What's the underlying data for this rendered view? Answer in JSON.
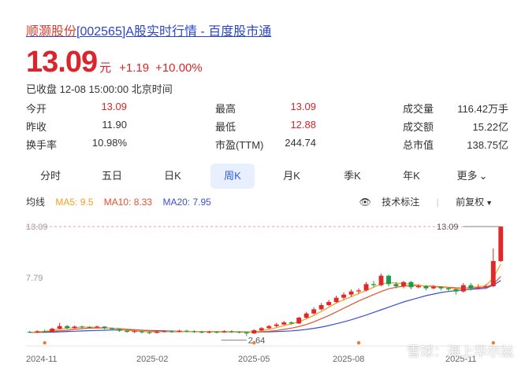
{
  "header": {
    "brand": "顺灏股份",
    "title_rest": "[002565]A股实时行情 - 百度股市通"
  },
  "quote": {
    "price": "13.09",
    "unit": "元",
    "change": "+1.19",
    "change_pct": "+10.00%",
    "status": "已收盘 12-08 15:00:00 北京时间"
  },
  "stats": [
    {
      "label": "今开",
      "value": "13.09",
      "color": "red"
    },
    {
      "label": "最高",
      "value": "13.09",
      "color": "red"
    },
    {
      "label": "成交量",
      "value": "116.42万手",
      "color": "plain"
    },
    {
      "label": "昨收",
      "value": "11.90",
      "color": "plain"
    },
    {
      "label": "最低",
      "value": "12.88",
      "color": "red"
    },
    {
      "label": "成交额",
      "value": "15.22亿",
      "color": "plain"
    },
    {
      "label": "换手率",
      "value": "10.98%",
      "color": "plain"
    },
    {
      "label": "市盈(TTM)",
      "value": "244.74",
      "color": "plain"
    },
    {
      "label": "总市值",
      "value": "138.75亿",
      "color": "plain"
    }
  ],
  "tabs": [
    {
      "label": "分时",
      "active": false
    },
    {
      "label": "五日",
      "active": false
    },
    {
      "label": "日K",
      "active": false
    },
    {
      "label": "周K",
      "active": true
    },
    {
      "label": "月K",
      "active": false
    },
    {
      "label": "季K",
      "active": false
    },
    {
      "label": "年K",
      "active": false
    },
    {
      "label": "更多",
      "active": false
    }
  ],
  "ma": {
    "label": "均线",
    "ma5": "MA5: 9.5",
    "ma10": "MA10: 8.33",
    "ma20": "MA20: 7.95",
    "tech_label": "技术标注",
    "restore_label": "前复权",
    "colors": {
      "ma5": "#f0a020",
      "ma10": "#e2522c",
      "ma20": "#3b4fd1"
    }
  },
  "chart_data": {
    "type": "candlestick",
    "y_ticks": [
      "13.09",
      "7.79"
    ],
    "x_ticks": [
      "2024-11",
      "2025-02",
      "2025-05",
      "2025-08",
      "2025-11"
    ],
    "max_label": "13.09",
    "min_label": "2.64",
    "ylim": [
      2.3,
      13.4
    ],
    "candles": [
      [
        3.05,
        3.0,
        3.15,
        2.95
      ],
      [
        3.0,
        3.1,
        3.2,
        2.95
      ],
      [
        3.1,
        3.05,
        3.25,
        3.0
      ],
      [
        3.05,
        3.35,
        3.45,
        3.0
      ],
      [
        3.35,
        3.6,
        3.9,
        3.3
      ],
      [
        3.6,
        3.4,
        3.7,
        3.3
      ],
      [
        3.4,
        3.55,
        3.65,
        3.35
      ],
      [
        3.55,
        3.5,
        3.65,
        3.4
      ],
      [
        3.5,
        3.45,
        3.6,
        3.35
      ],
      [
        3.45,
        3.55,
        3.65,
        3.4
      ],
      [
        3.55,
        3.4,
        3.6,
        3.3
      ],
      [
        3.4,
        3.3,
        3.45,
        3.2
      ],
      [
        3.3,
        3.15,
        3.35,
        3.05
      ],
      [
        3.15,
        3.05,
        3.2,
        2.95
      ],
      [
        3.05,
        3.1,
        3.2,
        2.95
      ],
      [
        3.1,
        3.0,
        3.15,
        2.9
      ],
      [
        3.0,
        2.95,
        3.1,
        2.85
      ],
      [
        2.95,
        3.05,
        3.15,
        2.9
      ],
      [
        3.05,
        3.1,
        3.2,
        3.0
      ],
      [
        3.1,
        3.05,
        3.2,
        2.95
      ],
      [
        3.05,
        3.15,
        3.25,
        3.0
      ],
      [
        3.15,
        3.1,
        3.25,
        3.0
      ],
      [
        3.1,
        3.05,
        3.2,
        2.95
      ],
      [
        3.05,
        3.0,
        3.15,
        2.9
      ],
      [
        3.0,
        3.05,
        3.15,
        2.9
      ],
      [
        3.05,
        3.0,
        3.1,
        2.9
      ],
      [
        3.0,
        3.1,
        3.2,
        2.95
      ],
      [
        3.1,
        3.05,
        3.2,
        2.95
      ],
      [
        3.05,
        3.0,
        3.1,
        2.9
      ],
      [
        3.0,
        2.9,
        3.05,
        2.64
      ],
      [
        2.9,
        3.2,
        3.3,
        2.85
      ],
      [
        3.2,
        3.4,
        3.5,
        3.1
      ],
      [
        3.4,
        3.6,
        3.7,
        3.3
      ],
      [
        3.6,
        3.75,
        3.9,
        3.5
      ],
      [
        3.75,
        3.95,
        4.1,
        3.7
      ],
      [
        3.95,
        3.85,
        4.05,
        3.75
      ],
      [
        3.85,
        4.4,
        4.5,
        3.8
      ],
      [
        4.4,
        4.8,
        4.95,
        4.3
      ],
      [
        4.8,
        5.2,
        5.4,
        4.7
      ],
      [
        5.2,
        5.6,
        5.8,
        5.1
      ],
      [
        5.6,
        5.9,
        6.1,
        5.5
      ],
      [
        5.9,
        6.3,
        6.5,
        5.8
      ],
      [
        6.3,
        6.6,
        6.8,
        6.1
      ],
      [
        6.6,
        6.9,
        7.1,
        6.4
      ],
      [
        6.9,
        7.0,
        7.2,
        6.7
      ],
      [
        7.0,
        7.6,
        7.8,
        6.9
      ],
      [
        7.6,
        7.5,
        7.9,
        7.3
      ],
      [
        7.5,
        8.4,
        8.6,
        7.4
      ],
      [
        8.4,
        7.6,
        8.5,
        7.4
      ],
      [
        7.6,
        7.4,
        7.8,
        7.2
      ],
      [
        7.4,
        7.8,
        7.9,
        7.2
      ],
      [
        7.8,
        7.3,
        7.9,
        7.1
      ],
      [
        7.3,
        7.4,
        7.6,
        7.2
      ],
      [
        7.4,
        7.2,
        7.5,
        7.0
      ],
      [
        7.2,
        7.35,
        7.5,
        7.1
      ],
      [
        7.35,
        7.2,
        7.4,
        7.0
      ],
      [
        7.2,
        7.1,
        7.3,
        6.9
      ],
      [
        7.1,
        6.9,
        7.2,
        6.6
      ],
      [
        6.9,
        7.5,
        7.7,
        6.8
      ],
      [
        7.5,
        7.2,
        7.7,
        7.0
      ],
      [
        7.2,
        7.3,
        7.6,
        7.1
      ],
      [
        7.3,
        7.4,
        7.6,
        7.2
      ],
      [
        7.4,
        9.8,
        11.0,
        7.3
      ],
      [
        9.8,
        13.09,
        13.09,
        9.7
      ]
    ],
    "ma5": [
      3.0,
      3.05,
      3.1,
      3.2,
      3.3,
      3.4,
      3.45,
      3.5,
      3.5,
      3.48,
      3.45,
      3.4,
      3.3,
      3.2,
      3.12,
      3.08,
      3.05,
      3.05,
      3.06,
      3.07,
      3.08,
      3.08,
      3.08,
      3.07,
      3.05,
      3.05,
      3.05,
      3.05,
      3.04,
      3.0,
      3.05,
      3.15,
      3.3,
      3.45,
      3.65,
      3.8,
      4.0,
      4.3,
      4.6,
      5.0,
      5.4,
      5.8,
      6.1,
      6.4,
      6.7,
      7.0,
      7.3,
      7.6,
      7.75,
      7.7,
      7.65,
      7.6,
      7.5,
      7.4,
      7.35,
      7.3,
      7.25,
      7.15,
      7.2,
      7.3,
      7.35,
      7.45,
      8.2,
      9.5
    ],
    "ma10": [
      3.0,
      3.0,
      3.05,
      3.1,
      3.15,
      3.2,
      3.28,
      3.35,
      3.4,
      3.42,
      3.42,
      3.4,
      3.35,
      3.3,
      3.25,
      3.2,
      3.15,
      3.1,
      3.08,
      3.06,
      3.06,
      3.07,
      3.07,
      3.07,
      3.06,
      3.06,
      3.06,
      3.05,
      3.05,
      3.04,
      3.04,
      3.06,
      3.1,
      3.18,
      3.28,
      3.4,
      3.55,
      3.75,
      4.0,
      4.3,
      4.6,
      4.95,
      5.3,
      5.65,
      6.0,
      6.3,
      6.6,
      6.9,
      7.15,
      7.3,
      7.4,
      7.45,
      7.45,
      7.42,
      7.4,
      7.35,
      7.3,
      7.25,
      7.22,
      7.22,
      7.25,
      7.3,
      7.6,
      8.33
    ],
    "ma20": [
      3.0,
      3.0,
      3.0,
      3.02,
      3.05,
      3.08,
      3.1,
      3.13,
      3.16,
      3.18,
      3.2,
      3.22,
      3.23,
      3.23,
      3.22,
      3.2,
      3.18,
      3.16,
      3.14,
      3.12,
      3.1,
      3.09,
      3.08,
      3.07,
      3.06,
      3.06,
      3.05,
      3.05,
      3.05,
      3.04,
      3.04,
      3.04,
      3.05,
      3.07,
      3.1,
      3.14,
      3.2,
      3.28,
      3.38,
      3.5,
      3.65,
      3.82,
      4.0,
      4.2,
      4.42,
      4.65,
      4.9,
      5.15,
      5.4,
      5.65,
      5.9,
      6.1,
      6.3,
      6.5,
      6.65,
      6.8,
      6.9,
      6.98,
      7.05,
      7.1,
      7.15,
      7.2,
      7.5,
      7.95
    ]
  },
  "watermark": "雪球：海上华尔兹"
}
